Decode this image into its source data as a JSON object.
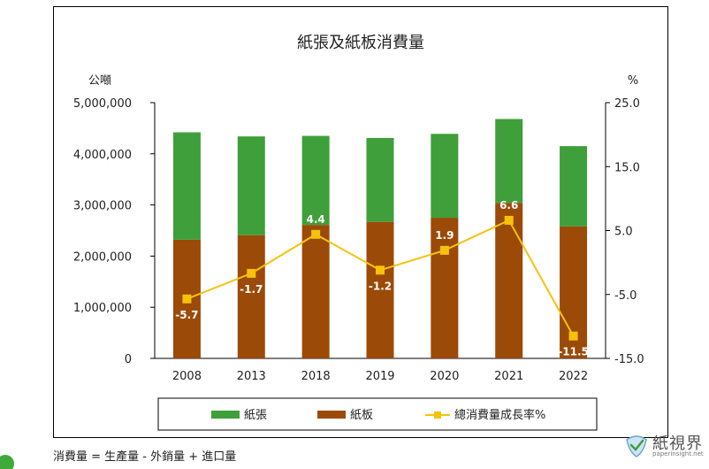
{
  "chart_data": {
    "type": "bar",
    "title": "紙張及紙板消費量",
    "categories": [
      "2008",
      "2013",
      "2018",
      "2019",
      "2020",
      "2021",
      "2022"
    ],
    "series": [
      {
        "name": "紙張",
        "kind": "stacked-bar",
        "color": "#3f9f3a",
        "values": [
          2100000,
          1930000,
          1740000,
          1640000,
          1640000,
          1640000,
          1570000
        ]
      },
      {
        "name": "紙板",
        "kind": "stacked-bar",
        "color": "#9c4a08",
        "values": [
          2320000,
          2410000,
          2610000,
          2670000,
          2750000,
          3040000,
          2580000
        ]
      },
      {
        "name": "總消費量成長率%",
        "kind": "line",
        "axis": "right",
        "color": "#f5c20c",
        "values": [
          -5.7,
          -1.7,
          4.4,
          -1.2,
          1.9,
          6.6,
          -11.5
        ]
      }
    ],
    "ylabel_left": "公噸",
    "ylabel_right": "%",
    "ylim_left": [
      0,
      5000000
    ],
    "yticks_left": [
      "0",
      "1,000,000",
      "2,000,000",
      "3,000,000",
      "4,000,000",
      "5,000,000"
    ],
    "ylim_right": [
      -15,
      25
    ],
    "yticks_right": [
      "-15.0",
      "-5.0",
      "5.0",
      "15.0",
      "25.0"
    ],
    "data_labels": [
      "-5.7",
      "-1.7",
      "4.4",
      "-1.2",
      "1.9",
      "6.6",
      "-11.5"
    ],
    "legend_position": "bottom",
    "grid": false
  },
  "footnote": "消費量 = 生產量 - 外銷量 + 進口量",
  "logo": {
    "name": "紙視界",
    "url": "paperinsight.net"
  }
}
